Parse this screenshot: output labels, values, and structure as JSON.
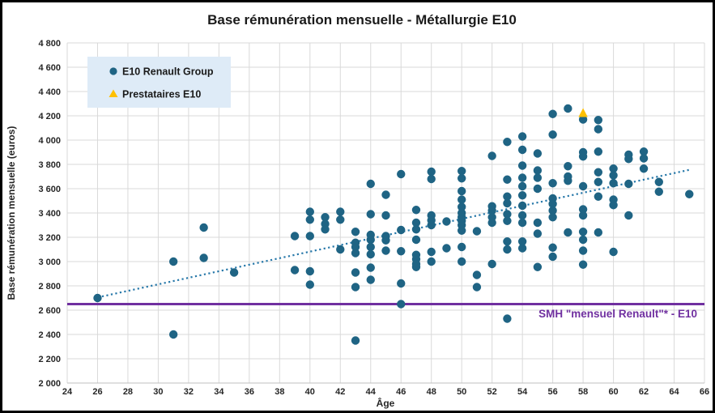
{
  "chart": {
    "title": "Base rémunération mensuelle - Métallurgie E10",
    "x_axis": {
      "label": "Âge",
      "min": 24,
      "max": 66,
      "tick_step": 2
    },
    "y_axis": {
      "label": "Base rémunération mensuelle (euros)",
      "min": 2000,
      "max": 4800,
      "tick_step": 200,
      "thousands_separator": " "
    },
    "legend": {
      "items": [
        {
          "label": "E10 Renault Group",
          "marker": "circle"
        },
        {
          "label": "Prestataires E10",
          "marker": "triangle"
        }
      ],
      "background": "#DEEBF7"
    }
  },
  "chart_data": {
    "type": "scatter",
    "xlabel": "Âge",
    "ylabel": "Base rémunération mensuelle (euros)",
    "xlim": [
      24,
      66
    ],
    "ylim": [
      2000,
      4800
    ],
    "grid": true,
    "series": [
      {
        "name": "E10 Renault Group",
        "marker": "circle",
        "color": "#1F6484",
        "points": [
          [
            26,
            2700
          ],
          [
            31,
            3000
          ],
          [
            31,
            2400
          ],
          [
            33,
            3280
          ],
          [
            33,
            3030
          ],
          [
            35,
            2910
          ],
          [
            39,
            3210
          ],
          [
            39,
            2930
          ],
          [
            40,
            3410
          ],
          [
            40,
            3345
          ],
          [
            40,
            3210
          ],
          [
            40,
            2920
          ],
          [
            40,
            2810
          ],
          [
            41,
            3365
          ],
          [
            41,
            3310
          ],
          [
            41,
            3265
          ],
          [
            42,
            3410
          ],
          [
            42,
            3345
          ],
          [
            42,
            3100
          ],
          [
            43,
            3245
          ],
          [
            43,
            3155
          ],
          [
            43,
            3120
          ],
          [
            43,
            3070
          ],
          [
            43,
            2910
          ],
          [
            43,
            2790
          ],
          [
            43,
            2350
          ],
          [
            44,
            3640
          ],
          [
            44,
            3390
          ],
          [
            44,
            3220
          ],
          [
            44,
            3180
          ],
          [
            44,
            3120
          ],
          [
            44,
            3060
          ],
          [
            44,
            2950
          ],
          [
            44,
            2850
          ],
          [
            45,
            3550
          ],
          [
            45,
            3380
          ],
          [
            45,
            3210
          ],
          [
            45,
            3175
          ],
          [
            45,
            3090
          ],
          [
            46,
            3720
          ],
          [
            46,
            3260
          ],
          [
            46,
            3085
          ],
          [
            46,
            2820
          ],
          [
            46,
            2650
          ],
          [
            47,
            3425
          ],
          [
            47,
            3320
          ],
          [
            47,
            3265
          ],
          [
            47,
            3180
          ],
          [
            47,
            3055
          ],
          [
            47,
            3020
          ],
          [
            47,
            2980
          ],
          [
            47,
            2955
          ],
          [
            48,
            3740
          ],
          [
            48,
            3680
          ],
          [
            48,
            3380
          ],
          [
            48,
            3340
          ],
          [
            48,
            3300
          ],
          [
            48,
            3080
          ],
          [
            48,
            3000
          ],
          [
            49,
            3330
          ],
          [
            49,
            3110
          ],
          [
            50,
            3745
          ],
          [
            50,
            3685
          ],
          [
            50,
            3580
          ],
          [
            50,
            3510
          ],
          [
            50,
            3450
          ],
          [
            50,
            3400
          ],
          [
            50,
            3365
          ],
          [
            50,
            3335
          ],
          [
            50,
            3300
          ],
          [
            50,
            3255
          ],
          [
            50,
            3120
          ],
          [
            50,
            3000
          ],
          [
            51,
            3250
          ],
          [
            51,
            2890
          ],
          [
            51,
            2790
          ],
          [
            52,
            3870
          ],
          [
            52,
            3455
          ],
          [
            52,
            3420
          ],
          [
            52,
            3365
          ],
          [
            52,
            3320
          ],
          [
            52,
            2980
          ],
          [
            53,
            3985
          ],
          [
            53,
            3675
          ],
          [
            53,
            3535
          ],
          [
            53,
            3480
          ],
          [
            53,
            3390
          ],
          [
            53,
            3335
          ],
          [
            53,
            3165
          ],
          [
            53,
            3100
          ],
          [
            53,
            2530
          ],
          [
            54,
            4030
          ],
          [
            54,
            3920
          ],
          [
            54,
            3790
          ],
          [
            54,
            3690
          ],
          [
            54,
            3620
          ],
          [
            54,
            3545
          ],
          [
            54,
            3460
          ],
          [
            54,
            3380
          ],
          [
            54,
            3320
          ],
          [
            54,
            3165
          ],
          [
            54,
            3110
          ],
          [
            55,
            3890
          ],
          [
            55,
            3750
          ],
          [
            55,
            3690
          ],
          [
            55,
            3600
          ],
          [
            55,
            3320
          ],
          [
            55,
            3230
          ],
          [
            55,
            2955
          ],
          [
            56,
            4215
          ],
          [
            56,
            4045
          ],
          [
            56,
            3645
          ],
          [
            56,
            3520
          ],
          [
            56,
            3475
          ],
          [
            56,
            3420
          ],
          [
            56,
            3365
          ],
          [
            56,
            3115
          ],
          [
            56,
            3040
          ],
          [
            57,
            4260
          ],
          [
            57,
            3785
          ],
          [
            57,
            3700
          ],
          [
            57,
            3665
          ],
          [
            57,
            3240
          ],
          [
            58,
            4170
          ],
          [
            58,
            3900
          ],
          [
            58,
            3865
          ],
          [
            58,
            3620
          ],
          [
            58,
            3430
          ],
          [
            58,
            3380
          ],
          [
            58,
            3245
          ],
          [
            58,
            3180
          ],
          [
            58,
            3090
          ],
          [
            58,
            2975
          ],
          [
            59,
            4165
          ],
          [
            59,
            4090
          ],
          [
            59,
            3905
          ],
          [
            59,
            3735
          ],
          [
            59,
            3655
          ],
          [
            59,
            3535
          ],
          [
            59,
            3240
          ],
          [
            60,
            3765
          ],
          [
            60,
            3710
          ],
          [
            60,
            3645
          ],
          [
            60,
            3510
          ],
          [
            60,
            3465
          ],
          [
            60,
            3080
          ],
          [
            61,
            3880
          ],
          [
            61,
            3845
          ],
          [
            61,
            3640
          ],
          [
            61,
            3380
          ],
          [
            62,
            3905
          ],
          [
            62,
            3850
          ],
          [
            62,
            3765
          ],
          [
            63,
            3655
          ],
          [
            63,
            3575
          ],
          [
            65,
            3555
          ]
        ]
      },
      {
        "name": "Prestataires E10",
        "marker": "triangle",
        "color": "#FFC000",
        "points": [
          [
            58,
            4220
          ]
        ]
      }
    ],
    "trendline": {
      "x1": 26,
      "y1": 2705,
      "x2": 65,
      "y2": 3755,
      "style": "dotted",
      "color": "#2778A9"
    },
    "reference_line": {
      "value": 2650,
      "label": "SMH \"mensuel Renault\"* - E10",
      "color": "#7030A0"
    }
  },
  "colors": {
    "grid": "#D9D9D9",
    "axis_line": "#BFBFBF",
    "dot": "#1F6484",
    "triangle": "#FFC000",
    "trend": "#2778A9",
    "reference": "#7030A0",
    "legend_bg": "#DEEBF7"
  }
}
